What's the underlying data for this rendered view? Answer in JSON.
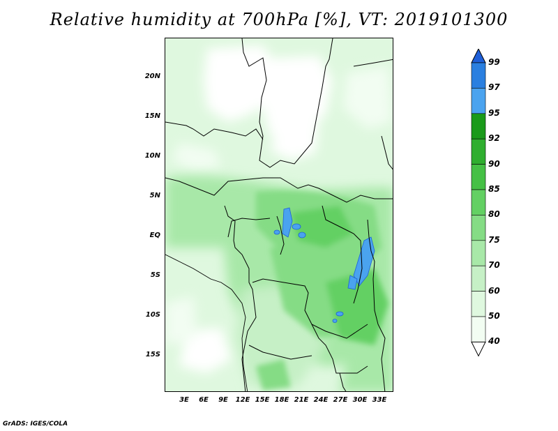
{
  "title": "Relative humidity at 700hPa [%], VT: 2019101300",
  "credit": "GrADS: IGES/COLA",
  "lat_labels": [
    "20N",
    "15N",
    "10N",
    "5N",
    "EQ",
    "5S",
    "10S",
    "15S"
  ],
  "lon_labels": [
    "3E",
    "6E",
    "9E",
    "12E",
    "15E",
    "18E",
    "21E",
    "24E",
    "27E",
    "30E",
    "33E"
  ],
  "colorbar": {
    "levels": [
      "99",
      "97",
      "95",
      "92",
      "90",
      "85",
      "80",
      "75",
      "70",
      "60",
      "50",
      "40"
    ],
    "colors": [
      "#1e5fd8",
      "#2a7fe0",
      "#4aa3ef",
      "#1a9a1a",
      "#2fae2f",
      "#45c045",
      "#63d063",
      "#85dc85",
      "#a8e8a8",
      "#c6f0c6",
      "#dff8df",
      "#f2fdf2",
      "#ffffff"
    ]
  }
}
